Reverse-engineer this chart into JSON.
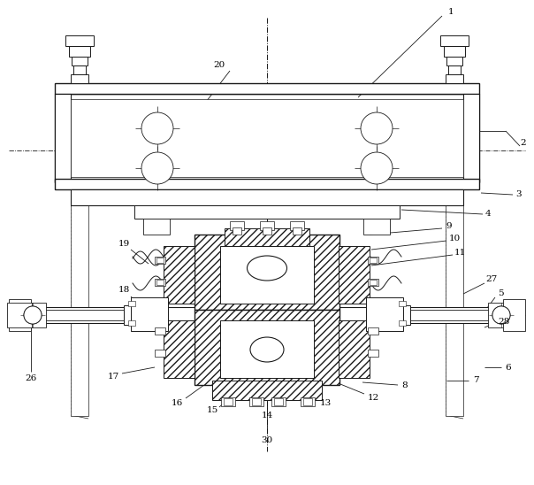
{
  "bg_color": "#ffffff",
  "lc": "#1a1a1a",
  "fig_w": 6.04,
  "fig_h": 5.48,
  "dpi": 100
}
